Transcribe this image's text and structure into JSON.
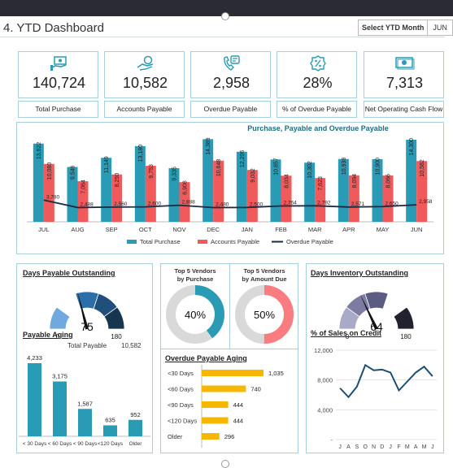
{
  "title": "4. YTD Dashboard",
  "ytd": {
    "label": "Select YTD Month",
    "value": "JUN"
  },
  "kpis": [
    {
      "value": "140,724",
      "label": "Total Purchase",
      "icon": "cash-hand-icon"
    },
    {
      "value": "10,582",
      "label": "Accounts Payable",
      "icon": "payable-hand-icon"
    },
    {
      "value": "2,958",
      "label": "Overdue Payable",
      "icon": "phone-bill-icon"
    },
    {
      "value": "28%",
      "label": "% of Overdue Payable",
      "icon": "percent-badge-icon"
    },
    {
      "value": "7,313",
      "label": "Net Operating Cash Flow",
      "icon": "banknote-icon"
    }
  ],
  "colors": {
    "teal": "#2a9bb5",
    "red": "#f15a5a",
    "navy": "#1a2a40",
    "gold": "#f5b700",
    "border": "#a8d0dc"
  },
  "main_chart_title": "Purchase, Payable and Overdue Payable",
  "gauge1": {
    "title": "Days Payable Outstanding",
    "value": "75",
    "min": "0",
    "max": "180",
    "fraction": 0.42
  },
  "payable_aging": {
    "title": "Payable Aging",
    "total_label": "Total Payable",
    "total_value": "10,582"
  },
  "donuts": [
    {
      "title_line1": "Top 5 Vendors",
      "title_line2": "by Purchase",
      "label": "40%",
      "fraction": 0.4
    },
    {
      "title_line1": "Top 5 Vendors",
      "title_line2": "by Amount Due",
      "label": "50%",
      "fraction": 0.5
    }
  ],
  "overdue_aging": {
    "title": "Overdue Payable Aging"
  },
  "gauge2": {
    "title": "Days Inventory Outstanding",
    "value": "64",
    "min": "0",
    "max": "180",
    "fraction": 0.36
  },
  "credit": {
    "title": "% of Sales on Credit"
  },
  "chart_data": [
    {
      "type": "bar",
      "title": "Purchase, Payable and Overdue Payable",
      "categories": [
        "JUL",
        "AUG",
        "SEP",
        "OCT",
        "NOV",
        "DEC",
        "JAN",
        "FEB",
        "MAR",
        "APR",
        "MAY",
        "JUN"
      ],
      "series": [
        {
          "name": "Total Purchase",
          "type": "bar",
          "values": [
            13622,
            9546,
            11149,
            13180,
            9335,
            14389,
            12206,
            10857,
            10302,
            10938,
            10900,
            14300
          ],
          "labels": [
            "13,622",
            "9,546",
            "11,149",
            "13,180",
            "9,335",
            "14,389",
            "12,206",
            "10,857",
            "10,302",
            "10,938",
            "10,900",
            "14,300"
          ]
        },
        {
          "name": "Accounts Payable",
          "type": "bar",
          "values": [
            10080,
            7064,
            8250,
            9753,
            6908,
            10648,
            9032,
            8034,
            7623,
            8094,
            8066,
            10582
          ],
          "labels": [
            "10,080",
            "7,064",
            "8,250",
            "9,753",
            "6,908",
            "10,648",
            "9,032",
            "8,034",
            "7,623",
            "8,094",
            "8,066",
            "10,582"
          ]
        },
        {
          "name": "Overdue Payable",
          "type": "line",
          "values": [
            3780,
            2488,
            2560,
            2600,
            2888,
            2480,
            2500,
            2764,
            2792,
            2571,
            2650,
            2958
          ],
          "labels": [
            "3,780",
            "2,488",
            "2,560",
            "2,600",
            "2,888",
            "2,480",
            "2,500",
            "2,764",
            "2,792",
            "2,571",
            "2,650",
            "2,958"
          ]
        }
      ]
    },
    {
      "type": "bar",
      "title": "Payable Aging",
      "categories": [
        "< 30 Days",
        "< 60 Days",
        "< 90 Days",
        "<120 Days",
        "Older"
      ],
      "values": [
        4233,
        3175,
        1587,
        635,
        952
      ],
      "labels": [
        "4,233",
        "3,175",
        "1,587",
        "635",
        "952"
      ]
    },
    {
      "type": "bar",
      "title": "Overdue Payable Aging",
      "categories": [
        "<30 Days",
        "<60 Days",
        "<90 Days",
        "<120 Days",
        "Older"
      ],
      "values": [
        1035,
        740,
        444,
        444,
        296
      ],
      "labels": [
        "1,035",
        "740",
        "444",
        "444",
        "296"
      ]
    },
    {
      "type": "line",
      "title": "% of Sales on Credit",
      "categories": [
        "J",
        "A",
        "S",
        "O",
        "N",
        "D",
        "J",
        "F",
        "M",
        "A",
        "M",
        "J"
      ],
      "values": [
        6900,
        5700,
        7100,
        10000,
        9300,
        9400,
        9000,
        6600,
        7800,
        9000,
        9800,
        8500
      ],
      "ylim": [
        0,
        12000
      ],
      "yticks": [
        "-",
        "4,000",
        "8,000",
        "12,000"
      ]
    }
  ]
}
